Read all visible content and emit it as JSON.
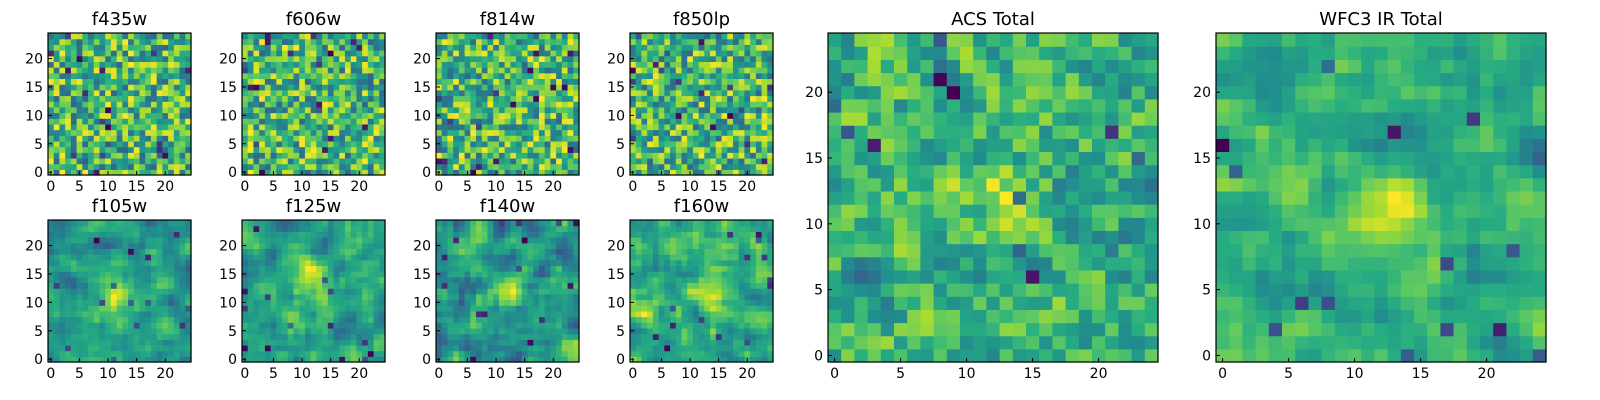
{
  "chart_data": [
    {
      "type": "heatmap",
      "title": "f435w",
      "xlim": [
        0,
        24
      ],
      "ylim": [
        0,
        24
      ],
      "xticks": [
        0,
        5,
        10,
        15,
        20
      ],
      "yticks": [
        0,
        5,
        10,
        15,
        20
      ],
      "colormap": "viridis",
      "texture": "fine-noise",
      "seed": 11
    },
    {
      "type": "heatmap",
      "title": "f606w",
      "xlim": [
        0,
        24
      ],
      "ylim": [
        0,
        24
      ],
      "xticks": [
        0,
        5,
        10,
        15,
        20
      ],
      "yticks": [
        0,
        5,
        10,
        15,
        20
      ],
      "colormap": "viridis",
      "texture": "fine-noise",
      "seed": 23
    },
    {
      "type": "heatmap",
      "title": "f814w",
      "xlim": [
        0,
        24
      ],
      "ylim": [
        0,
        24
      ],
      "xticks": [
        0,
        5,
        10,
        15,
        20
      ],
      "yticks": [
        0,
        5,
        10,
        15,
        20
      ],
      "colormap": "viridis",
      "texture": "fine-noise",
      "seed": 37
    },
    {
      "type": "heatmap",
      "title": "f850lp",
      "xlim": [
        0,
        24
      ],
      "ylim": [
        0,
        24
      ],
      "xticks": [
        0,
        5,
        10,
        15,
        20
      ],
      "yticks": [
        0,
        5,
        10,
        15,
        20
      ],
      "colormap": "viridis",
      "texture": "fine-noise",
      "seed": 41
    },
    {
      "type": "heatmap",
      "title": "f105w",
      "xlim": [
        0,
        24
      ],
      "ylim": [
        0,
        24
      ],
      "xticks": [
        0,
        5,
        10,
        15,
        20
      ],
      "yticks": [
        0,
        5,
        10,
        15,
        20
      ],
      "colormap": "viridis",
      "texture": "smooth-source",
      "source_center": [
        11,
        11
      ],
      "seed": 53
    },
    {
      "type": "heatmap",
      "title": "f125w",
      "xlim": [
        0,
        24
      ],
      "ylim": [
        0,
        24
      ],
      "xticks": [
        0,
        5,
        10,
        15,
        20
      ],
      "yticks": [
        0,
        5,
        10,
        15,
        20
      ],
      "colormap": "viridis",
      "texture": "smooth-source",
      "source_center": [
        12,
        15
      ],
      "seed": 67
    },
    {
      "type": "heatmap",
      "title": "f140w",
      "xlim": [
        0,
        24
      ],
      "ylim": [
        0,
        24
      ],
      "xticks": [
        0,
        5,
        10,
        15,
        20
      ],
      "yticks": [
        0,
        5,
        10,
        15,
        20
      ],
      "colormap": "viridis",
      "texture": "smooth-source",
      "source_center": [
        12,
        12
      ],
      "seed": 79
    },
    {
      "type": "heatmap",
      "title": "f160w",
      "xlim": [
        0,
        24
      ],
      "ylim": [
        0,
        24
      ],
      "xticks": [
        0,
        5,
        10,
        15,
        20
      ],
      "yticks": [
        0,
        5,
        10,
        15,
        20
      ],
      "colormap": "viridis",
      "texture": "smooth-source",
      "source_center": [
        13,
        12
      ],
      "seed": 83
    },
    {
      "type": "heatmap",
      "title": "ACS Total",
      "xlim": [
        0,
        24
      ],
      "ylim": [
        0,
        24
      ],
      "xticks": [
        0,
        5,
        10,
        15,
        20
      ],
      "yticks": [
        0,
        5,
        10,
        15,
        20
      ],
      "colormap": "viridis",
      "texture": "mixed",
      "source_center": [
        12,
        12
      ],
      "seed": 97
    },
    {
      "type": "heatmap",
      "title": "WFC3 IR Total",
      "xlim": [
        0,
        24
      ],
      "ylim": [
        0,
        24
      ],
      "xticks": [
        0,
        5,
        10,
        15,
        20
      ],
      "yticks": [
        0,
        5,
        10,
        15,
        20
      ],
      "colormap": "viridis",
      "texture": "smooth-source",
      "source_center": [
        12,
        11
      ],
      "seed": 101
    }
  ]
}
